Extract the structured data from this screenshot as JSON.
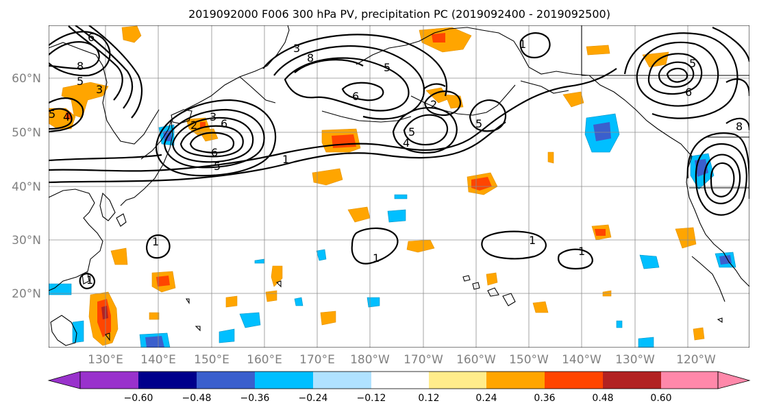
{
  "title": "2019092000 F006 300 hPa PV, precipitation PC (2019092400 - 2019092500)",
  "lat_labels": [
    "60°N",
    "50°N",
    "40°N",
    "30°N",
    "20°N"
  ],
  "lon_labels": [
    "130°E",
    "140°E",
    "150°E",
    "160°E",
    "170°E",
    "180°W",
    "170°W",
    "160°W",
    "150°W",
    "140°W",
    "130°W",
    "120°W"
  ],
  "contour_labels": [
    "6",
    "8",
    "5",
    "3",
    "4",
    "5",
    "3",
    "2",
    "6",
    "6",
    "5",
    "4",
    "2",
    "5",
    "1",
    "1",
    "1",
    "1",
    "1",
    "1",
    "5",
    "6",
    "5",
    "1",
    "3",
    "8",
    "6",
    "8",
    "5"
  ],
  "colorbar": {
    "ticks": [
      "−0.60",
      "−0.48",
      "−0.36",
      "−0.24",
      "−0.12",
      "0.12",
      "0.24",
      "0.36",
      "0.48",
      "0.60"
    ],
    "colors": [
      "#9932cc",
      "#00008b",
      "#3a5fcd",
      "#00bfff",
      "#b0e2ff",
      "#ffffff",
      "#ffec8b",
      "#ffa500",
      "#ff4500",
      "#b22222",
      "#ff88aa"
    ]
  }
}
